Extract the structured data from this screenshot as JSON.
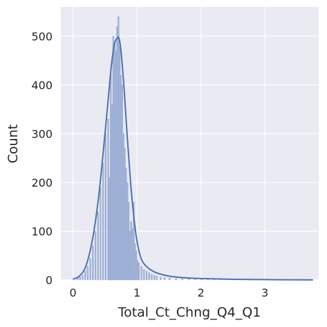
{
  "chart_data": {
    "type": "histogram",
    "title": "",
    "xlabel": "Total_Ct_Chng_Q4_Q1",
    "ylabel": "Count",
    "xlim": [
      -0.19,
      3.84
    ],
    "ylim": [
      0,
      560
    ],
    "xticks": [
      0,
      1,
      2,
      3
    ],
    "xtick_labels": [
      "0",
      "1",
      "2",
      "3"
    ],
    "yticks": [
      0,
      100,
      200,
      300,
      400,
      500
    ],
    "ytick_labels": [
      "0",
      "100",
      "200",
      "300",
      "400",
      "500"
    ],
    "grid": true,
    "bin_width": 0.02,
    "bins": {
      "x": [
        0.0,
        0.06,
        0.1,
        0.14,
        0.18,
        0.22,
        0.26,
        0.3,
        0.34,
        0.38,
        0.42,
        0.46,
        0.5,
        0.54,
        0.56,
        0.58,
        0.6,
        0.62,
        0.64,
        0.66,
        0.68,
        0.7,
        0.72,
        0.74,
        0.76,
        0.78,
        0.8,
        0.82,
        0.84,
        0.86,
        0.88,
        0.9,
        0.92,
        0.94,
        0.96,
        0.98,
        1.0,
        1.02,
        1.06,
        1.1,
        1.14,
        1.18,
        1.22,
        1.26,
        1.3,
        1.36,
        1.42,
        1.5,
        1.6,
        1.7,
        1.8,
        1.9,
        2.0,
        2.1,
        2.2,
        2.3,
        2.4,
        2.5,
        2.6,
        2.75,
        2.9,
        3.0,
        3.2,
        3.4,
        3.6
      ],
      "counts": [
        3,
        4,
        6,
        10,
        18,
        28,
        45,
        70,
        100,
        140,
        190,
        240,
        300,
        330,
        210,
        420,
        360,
        500,
        490,
        470,
        520,
        540,
        480,
        420,
        400,
        300,
        270,
        230,
        200,
        160,
        100,
        120,
        105,
        160,
        75,
        60,
        40,
        35,
        28,
        22,
        18,
        15,
        12,
        10,
        8,
        6,
        5,
        4,
        3,
        3,
        2,
        2,
        3,
        1,
        1,
        1,
        1,
        1,
        1,
        1,
        0,
        1,
        0,
        1,
        0
      ]
    },
    "kde": {
      "x": [
        0.0,
        0.1,
        0.2,
        0.3,
        0.4,
        0.5,
        0.55,
        0.6,
        0.65,
        0.7,
        0.72,
        0.75,
        0.8,
        0.85,
        0.9,
        0.95,
        1.0,
        1.05,
        1.1,
        1.2,
        1.3,
        1.4,
        1.5,
        1.7,
        2.0,
        2.5,
        3.0,
        3.5,
        3.75
      ],
      "y": [
        2,
        8,
        28,
        80,
        170,
        300,
        370,
        440,
        485,
        497,
        495,
        470,
        390,
        290,
        200,
        130,
        80,
        50,
        35,
        22,
        15,
        11,
        8,
        5,
        3,
        1.5,
        0.8,
        0.3,
        0.2
      ]
    },
    "colors": {
      "bar_fill": "#a4b4d8",
      "bar_edge": "#8fa3cf",
      "kde_line": "#4c72b0",
      "background": "#eaeaf2",
      "grid": "#ffffff"
    }
  }
}
